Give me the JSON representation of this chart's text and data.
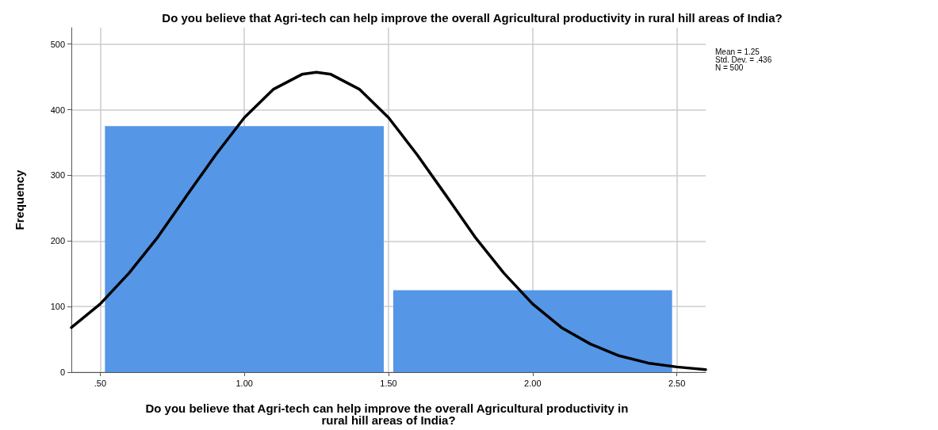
{
  "chart_data": {
    "type": "histogram",
    "title": "Do you believe that Agri-tech can help improve the overall Agricultural productivity in rural hill areas of India?",
    "xlabel": "Do you believe that Agri-tech can help improve the overall Agricultural productivity in rural hill areas of India?",
    "ylabel": "Frequency",
    "bins": [
      0.5,
      1.5,
      2.5
    ],
    "series": [
      {
        "color": "#5596e6",
        "values": [
          375,
          125
        ]
      },
      {
        "type": "line",
        "color": "#000000",
        "marker": "none",
        "x": [
          0.4,
          0.5,
          0.6,
          0.7,
          0.8,
          0.9,
          1.0,
          1.1,
          1.2,
          1.25,
          1.3,
          1.4,
          1.5,
          1.6,
          1.7,
          1.8,
          1.9,
          2.0,
          2.1,
          2.2,
          2.3,
          2.4,
          2.5,
          2.6
        ],
        "values": [
          68,
          104,
          151,
          206,
          269,
          331,
          388,
          431,
          454,
          457,
          454,
          431,
          388,
          331,
          269,
          206,
          151,
          104,
          68,
          43,
          25,
          14,
          8,
          4
        ]
      }
    ],
    "xlim": [
      0.4,
      2.6
    ],
    "xticks": [
      {
        "value": 0.5,
        "label": ".50"
      },
      {
        "value": 1,
        "label": "1.00"
      },
      {
        "value": 1.5,
        "label": "1.50"
      },
      {
        "value": 2,
        "label": "2.00"
      },
      {
        "value": 2.5,
        "label": "2.50"
      }
    ],
    "ylim": [
      0,
      525
    ],
    "yticks": [
      0,
      100,
      200,
      300,
      400,
      500
    ],
    "grid": true,
    "annotations": [
      "Mean = 1.25",
      "Std. Dev. = .436",
      "N = 500"
    ]
  }
}
